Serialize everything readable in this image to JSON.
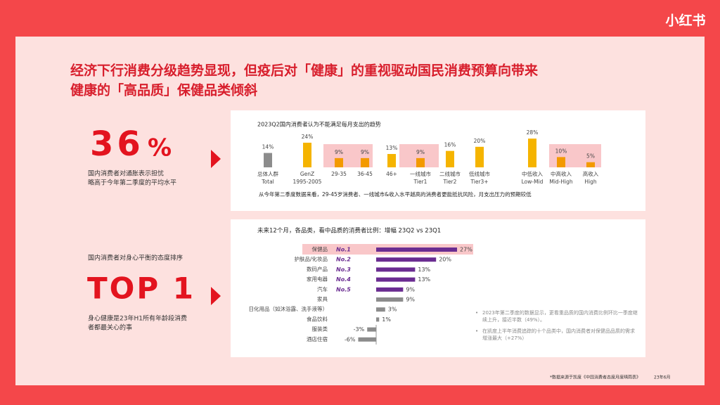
{
  "logo": "小红书",
  "title": [
    "经济下行消费分级趋势显现，但疫后对「健康」的重视驱动国民消费预算向带来",
    "健康的「高品质」保健品类倾斜"
  ],
  "stat": {
    "number": "36",
    "unit": "%",
    "caption": [
      "国内消费者对通胀表示担忧",
      "略高于今年第二季度的平均水平"
    ]
  },
  "top": {
    "heading": "国内消费者对身心平衡的态度排序",
    "label": "TOP 1",
    "caption": [
      "身心健康是23年H1所有年龄段消费",
      "者都最关心的事"
    ]
  },
  "chart_data": [
    {
      "type": "bar",
      "title": "2023Q2国内消费者认为不能满足每月支出的趋势",
      "categories": [
        "总体人群",
        "GenZ",
        "29-35",
        "36-45",
        "46+",
        "一线城市",
        "二线城市",
        "低线城市",
        "中低收入",
        "中高收入",
        "高收入"
      ],
      "category_sublabels": [
        "Total",
        "1995-2005",
        null,
        null,
        null,
        "Tier1",
        "Tier2",
        "Tier3+",
        "Low-Mid",
        "Mid-High",
        "High"
      ],
      "values": [
        14,
        24,
        9,
        9,
        13,
        9,
        16,
        20,
        28,
        10,
        5
      ],
      "value_labels": [
        "14%",
        "24%",
        "9%",
        "9%",
        "13%",
        "9%",
        "16%",
        "20%",
        "28%",
        "10%",
        "5%"
      ],
      "colors": [
        "#8c8c8c",
        "#f5b400",
        "#f39a00",
        "#f39a00",
        "#f5b400",
        "#f39a00",
        "#f5b400",
        "#f5b400",
        "#f5b400",
        "#f39a00",
        "#f39a00"
      ],
      "note": "从今年第二季度数据来看，29-45岁消费者、一线城市&收入水平越高的消费者更能抵抗风险，月支出压力的预期较低"
    },
    {
      "type": "hbar",
      "title": "未来12个月，各品类，看中品质的消费者比例：增幅 23Q2 vs 23Q1",
      "categories": [
        "保健品",
        "护肤品/化妆品",
        "数码产品",
        "家用电器",
        "汽车",
        "家具",
        "日化用品（如沐浴露、洗手液等）",
        "食品饮料",
        "服装类",
        "酒店住宿"
      ],
      "ranks": [
        "No.1",
        "No.2",
        "No.3",
        "No.4",
        "No.5",
        null,
        null,
        null,
        null,
        null
      ],
      "values": [
        27,
        20,
        13,
        13,
        9,
        9,
        3,
        1,
        -3,
        -6
      ],
      "value_labels": [
        "27%",
        "20%",
        "13%",
        "13%",
        "9%",
        "9%",
        "3%",
        "1%",
        "-3%",
        "-6%"
      ],
      "colors": [
        "#6a2c91",
        "#6a2c91",
        "#6a2c91",
        "#6a2c91",
        "#6a2c91",
        "#8c8c8c",
        "#8c8c8c",
        "#8c8c8c",
        "#8c8c8c",
        "#8c8c8c"
      ]
    }
  ],
  "notes": [
    "2023年第二季度的数据显示，更看重品质的国内消费比例环比一季度继续上升，接近半数（49%）。",
    "在凯度上半年消费追踪的十个品类中，国内消费者对保健品品质的需求增涨最大（+27%）"
  ],
  "footnote": {
    "source": "*数据来源于凯度《中国消费者态度月度晴雨表》",
    "date": "23年6月"
  }
}
